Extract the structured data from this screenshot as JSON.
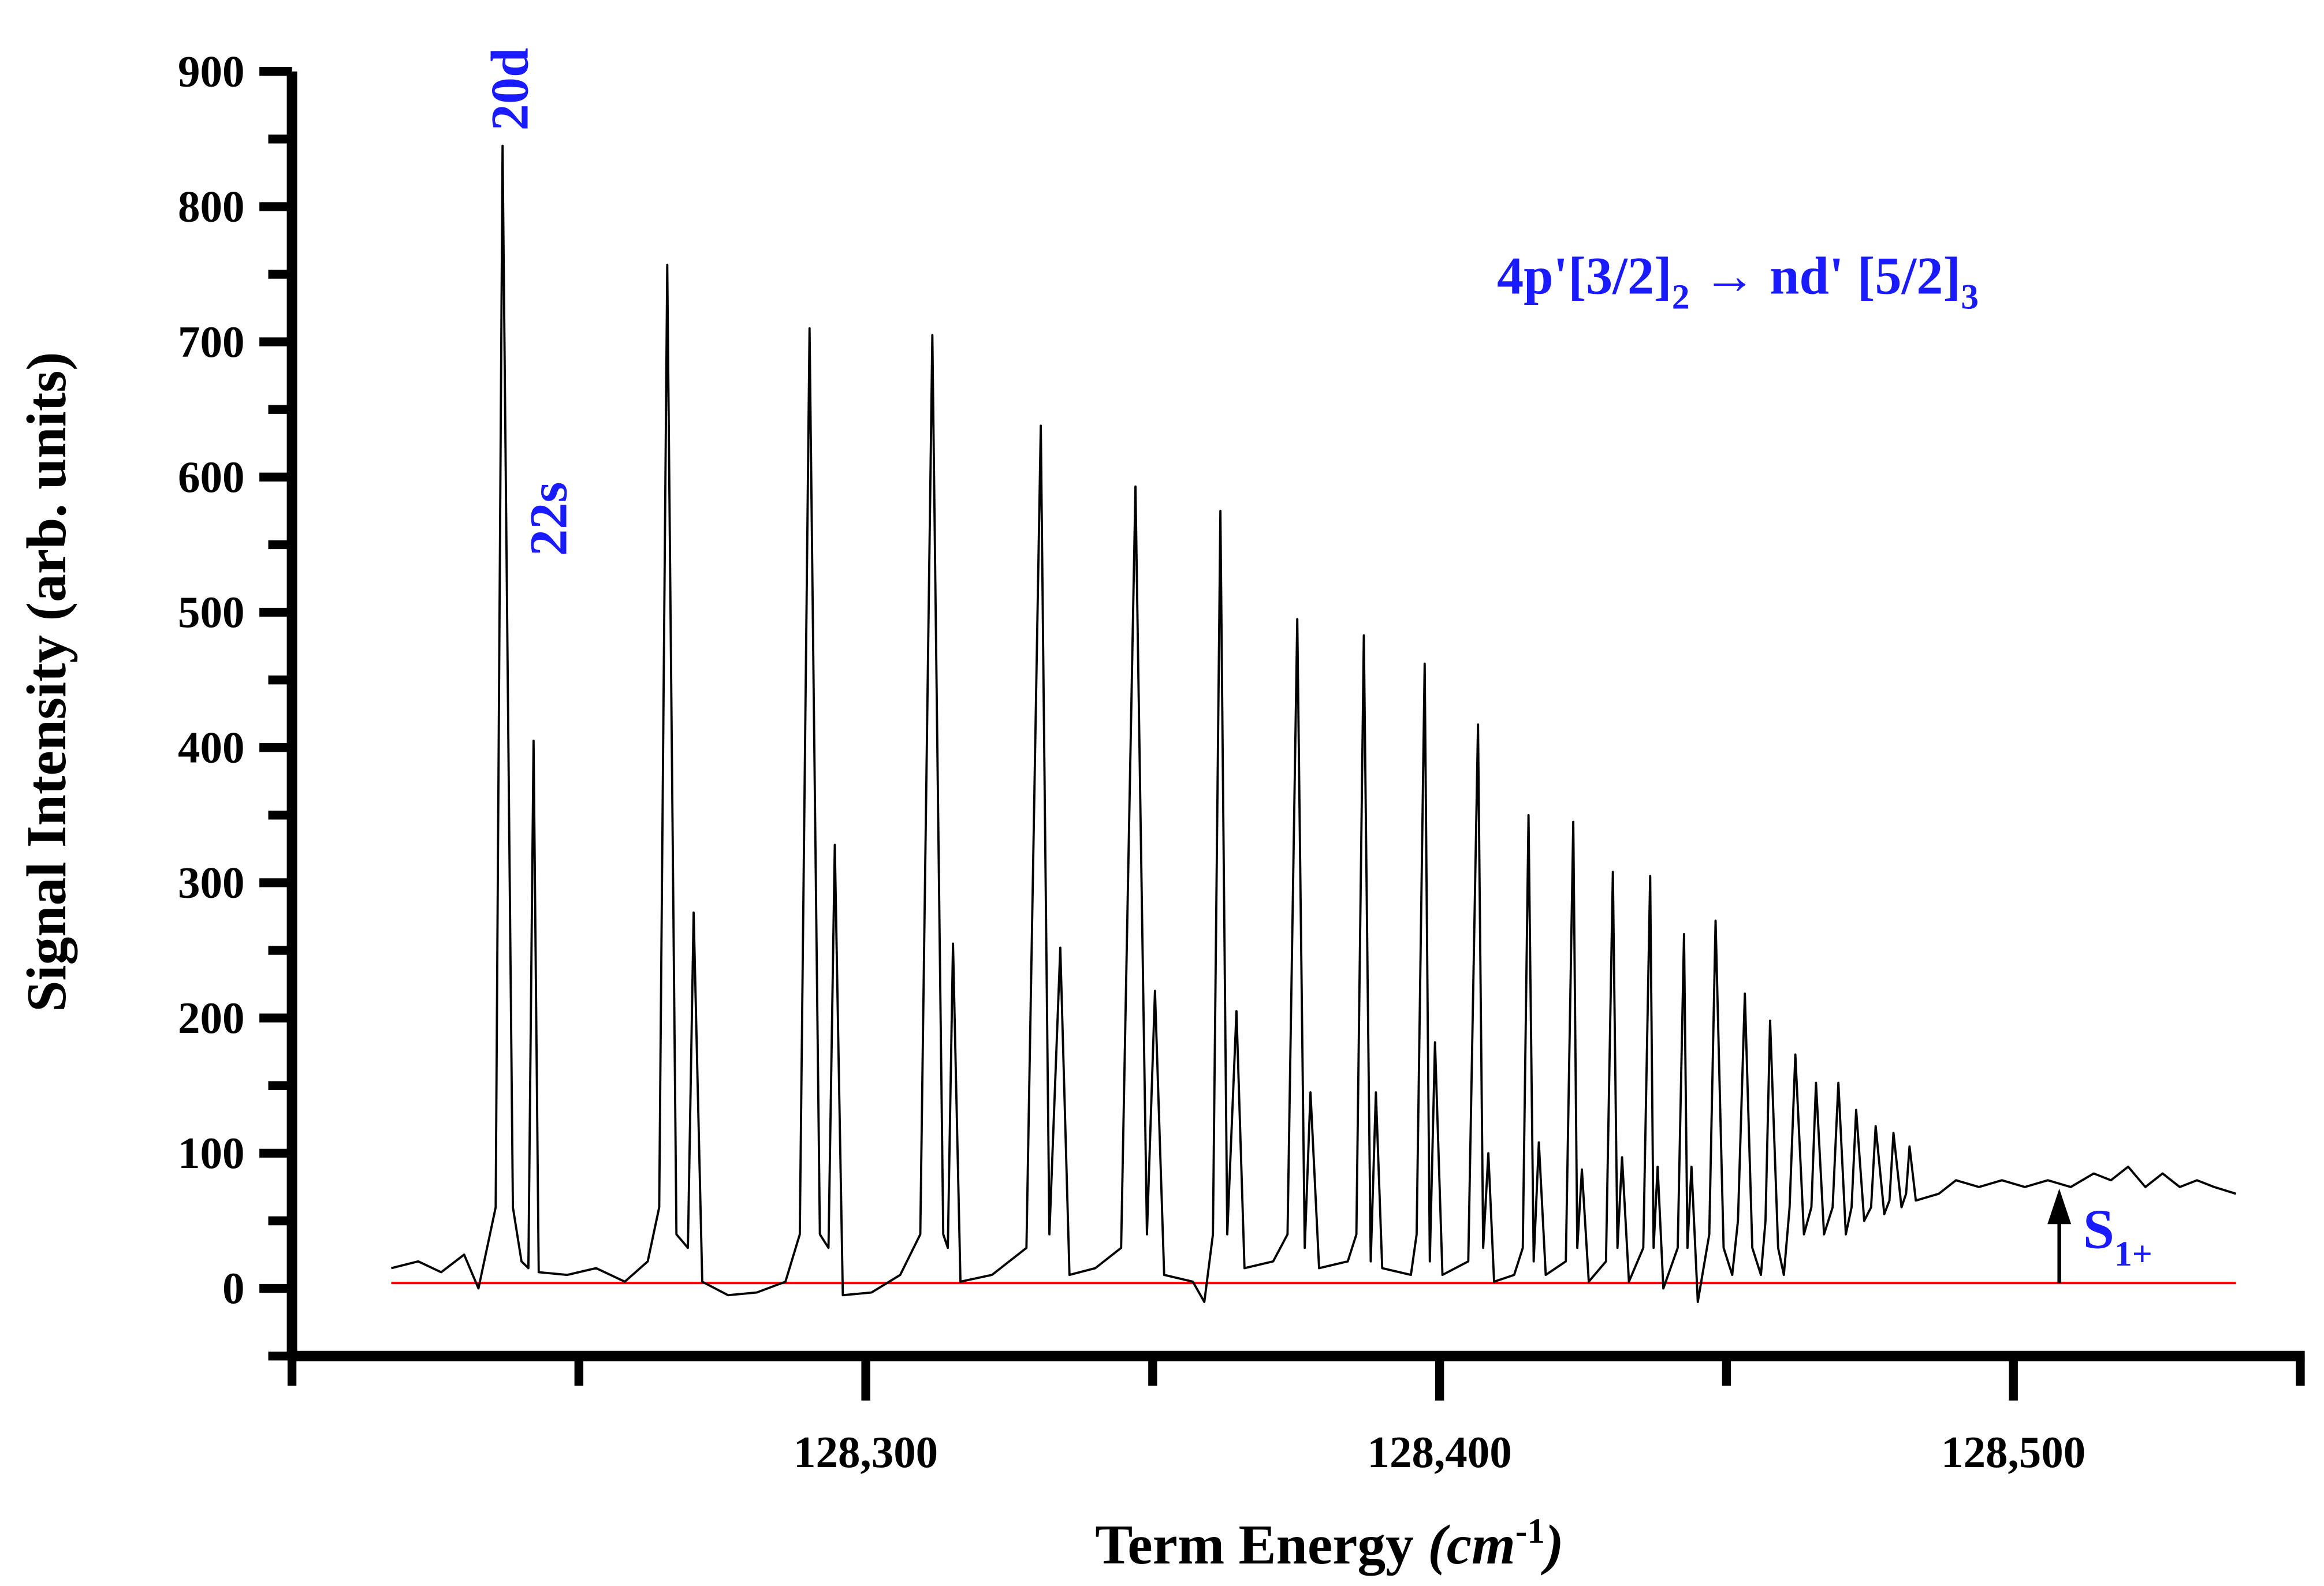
{
  "chart_data": {
    "type": "line",
    "xlabel": "Term Energy ",
    "xlabel_unit": "(cm",
    "xlabel_sup": "-1",
    "xlabel_end": ")",
    "ylabel": "Signal Intensity (arb. units)",
    "xlim": [
      128200,
      128550
    ],
    "xticks": [
      {
        "value": 128300,
        "label": "128,300"
      },
      {
        "value": 128400,
        "label": "128,400"
      },
      {
        "value": 128500,
        "label": "128,500"
      }
    ],
    "xminor_ticks": [
      128200,
      128250,
      128350,
      128450,
      128550
    ],
    "ylim": [
      -50,
      900
    ],
    "yticks": [
      0,
      100,
      200,
      300,
      400,
      500,
      600,
      700,
      800,
      900
    ],
    "yminor_ticks": [
      -50,
      50,
      150,
      250,
      350,
      450,
      550,
      650,
      750,
      850
    ],
    "color": "#000000",
    "x": [
      128217.3,
      128222,
      128226,
      128230,
      128232.5,
      128234,
      128235.5,
      128236.7,
      128238.5,
      128240,
      128241.2,
      128242.1,
      128243,
      128248,
      128253,
      128258,
      128262,
      128264,
      128265.4,
      128267,
      128269,
      128270,
      128271.5,
      128276,
      128281,
      128286,
      128288.5,
      128290.2,
      128292,
      128293.5,
      128294.6,
      128296,
      128301,
      128306,
      128309.5,
      128311.6,
      128313.5,
      128314.3,
      128315.2,
      128316.5,
      128322,
      128328,
      128330.5,
      128332,
      128333.9,
      128335.5,
      128340,
      128344.5,
      128347,
      128349,
      128350.4,
      128352,
      128357,
      128359,
      128360.5,
      128361.8,
      128363,
      128364.6,
      128366,
      128371,
      128373.5,
      128375.2,
      128376.5,
      128377.5,
      128379,
      128384,
      128385.5,
      128386.8,
      128388,
      128388.9,
      128390,
      128395,
      128396,
      128397.4,
      128398.3,
      128399.2,
      128400.5,
      128405,
      128406.7,
      128407.6,
      128408.5,
      128409.5,
      128413,
      128414.5,
      128415.5,
      128416.4,
      128417.3,
      128418.5,
      128422,
      128423.3,
      128424,
      128424.8,
      128426,
      128429,
      128430.2,
      128431,
      128431.8,
      128433,
      128435.5,
      128436.7,
      128437.3,
      128438,
      128439,
      128441.5,
      128442.6,
      128443.2,
      128443.9,
      128445,
      128447,
      128448.1,
      128449.5,
      128451,
      128452,
      128453.2,
      128454.5,
      128456,
      128456.8,
      128457.6,
      128459,
      128460,
      128461,
      128462,
      128463.5,
      128464.8,
      128465.6,
      128467,
      128468.5,
      128469.5,
      128470.8,
      128471.8,
      128472.6,
      128474,
      128475.2,
      128476,
      128477.5,
      128478.4,
      128479.1,
      128480.5,
      128481.3,
      128481.9,
      128483,
      128487,
      128490,
      128494,
      128498,
      128502,
      128506,
      128510,
      128514,
      128517,
      128520,
      128523,
      128526,
      128529,
      128532,
      128535,
      128538.8
    ],
    "values": [
      15,
      20,
      12,
      25,
      0,
      30,
      60,
      845,
      60,
      20,
      15,
      405,
      12,
      10,
      15,
      5,
      20,
      60,
      757,
      40,
      30,
      278,
      5,
      -5,
      -3,
      5,
      40,
      710,
      40,
      30,
      328,
      -5,
      -3,
      10,
      40,
      705,
      40,
      30,
      255,
      5,
      10,
      30,
      638,
      40,
      252,
      10,
      15,
      30,
      593,
      40,
      220,
      10,
      5,
      -10,
      40,
      575,
      40,
      205,
      15,
      20,
      40,
      495,
      30,
      145,
      15,
      20,
      40,
      483,
      20,
      145,
      15,
      10,
      40,
      462,
      20,
      182,
      10,
      20,
      417,
      30,
      100,
      5,
      10,
      30,
      350,
      20,
      108,
      10,
      20,
      345,
      30,
      88,
      5,
      20,
      308,
      30,
      97,
      5,
      30,
      305,
      30,
      90,
      0,
      30,
      262,
      30,
      90,
      -10,
      40,
      272,
      30,
      10,
      50,
      218,
      30,
      10,
      50,
      198,
      30,
      10,
      60,
      173,
      40,
      60,
      152,
      40,
      60,
      152,
      40,
      60,
      132,
      50,
      60,
      120,
      55,
      65,
      115,
      60,
      70,
      105,
      65,
      70,
      80,
      75,
      80,
      75,
      80,
      75,
      85,
      80,
      90,
      75,
      85,
      75,
      80,
      75,
      70
    ],
    "reference_line": {
      "y": 4,
      "x": [
        128217.3,
        128538.8
      ],
      "color": "#ff0000"
    },
    "annotations": {
      "peak_20d": "20d",
      "peak_22s": "22s"
    },
    "transition": [
      "4p'[3/2]",
      "2",
      " → nd' [5/2]",
      "3"
    ],
    "threshold": {
      "x": 128508,
      "label": "S",
      "label_sub": "1+"
    }
  }
}
